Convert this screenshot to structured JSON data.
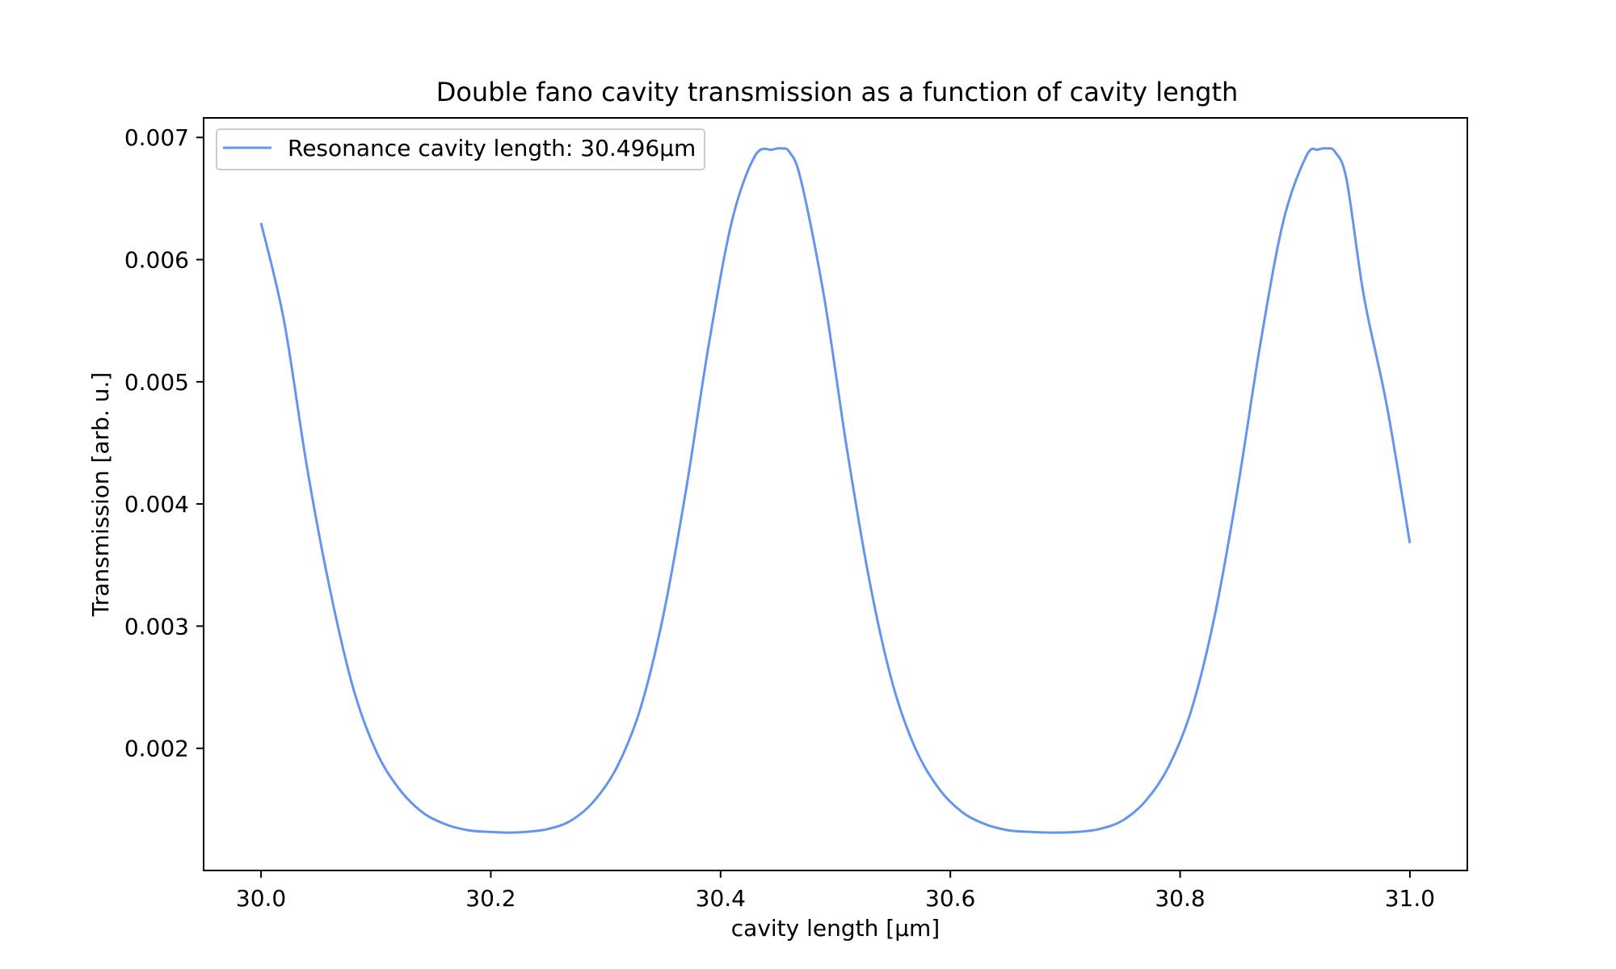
{
  "chart_data": {
    "type": "line",
    "title": "Double fano cavity transmission as a function of cavity length",
    "xlabel": "cavity length [µm]",
    "ylabel": "Transmission [arb. u.]",
    "xlim": [
      29.95,
      31.05
    ],
    "ylim": [
      0.001,
      0.00716
    ],
    "xticks": [
      30.0,
      30.2,
      30.4,
      30.6,
      30.8,
      31.0
    ],
    "xtick_labels": [
      "30.0",
      "30.2",
      "30.4",
      "30.6",
      "30.8",
      "31.0"
    ],
    "yticks": [
      0.002,
      0.003,
      0.004,
      0.005,
      0.006,
      0.007
    ],
    "ytick_labels": [
      "0.002",
      "0.003",
      "0.004",
      "0.005",
      "0.006",
      "0.007"
    ],
    "grid": false,
    "legend_position": "top-left",
    "series": [
      {
        "name": "Resonance cavity length: 30.496µm",
        "color": "#6495ed",
        "x": [
          30.0,
          30.02,
          30.04,
          30.06,
          30.08,
          30.1,
          30.12,
          30.14,
          30.16,
          30.18,
          30.2,
          30.215,
          30.23,
          30.25,
          30.27,
          30.29,
          30.31,
          30.33,
          30.35,
          30.37,
          30.39,
          30.41,
          30.43,
          30.445,
          30.453,
          30.46,
          30.47,
          30.49,
          30.51,
          30.53,
          30.55,
          30.57,
          30.59,
          30.61,
          30.63,
          30.65,
          30.67,
          30.69,
          30.71,
          30.73,
          30.75,
          30.77,
          30.79,
          30.81,
          30.83,
          30.85,
          30.87,
          30.89,
          30.91,
          30.92,
          30.928,
          30.935,
          30.945,
          30.96,
          30.98,
          31.0
        ],
        "y": [
          0.0063,
          0.0055,
          0.0043,
          0.0033,
          0.0025,
          0.00198,
          0.00167,
          0.00148,
          0.00138,
          0.00133,
          0.001315,
          0.00131,
          0.001315,
          0.00134,
          0.00141,
          0.00157,
          0.00185,
          0.00232,
          0.00308,
          0.00412,
          0.00532,
          0.00632,
          0.00685,
          0.0069,
          0.00691,
          0.00688,
          0.00665,
          0.0057,
          0.00445,
          0.00335,
          0.00252,
          0.00199,
          0.00167,
          0.00148,
          0.00138,
          0.00133,
          0.001315,
          0.00131,
          0.001315,
          0.00134,
          0.00141,
          0.00157,
          0.00185,
          0.00232,
          0.00308,
          0.00412,
          0.00532,
          0.00632,
          0.00685,
          0.0069,
          0.00691,
          0.00688,
          0.00665,
          0.0057,
          0.0048,
          0.00368
        ]
      }
    ]
  }
}
